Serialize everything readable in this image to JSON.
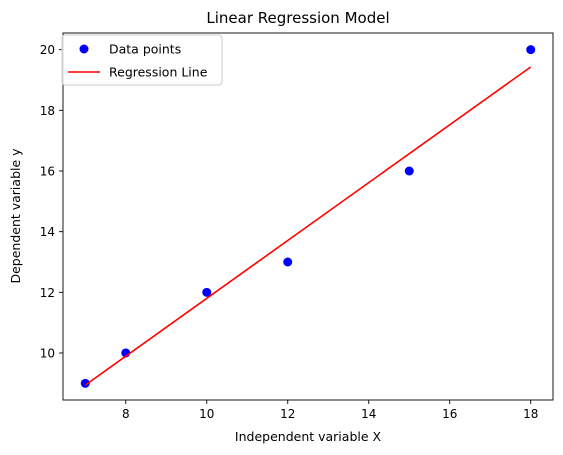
{
  "chart_data": {
    "type": "scatter",
    "title": "Linear Regression Model",
    "xlabel": "Independent variable X",
    "ylabel": "Dependent variable y",
    "xlim": [
      6.45,
      18.55
    ],
    "ylim": [
      8.45,
      20.55
    ],
    "xticks": [
      8,
      10,
      12,
      14,
      16,
      18
    ],
    "yticks": [
      10,
      12,
      14,
      16,
      18,
      20
    ],
    "grid": false,
    "legend_position": "top-left",
    "series": [
      {
        "name": "Data points",
        "kind": "scatter",
        "color": "#0000ff",
        "points": [
          [
            7,
            9
          ],
          [
            8,
            10
          ],
          [
            10,
            12
          ],
          [
            12,
            13
          ],
          [
            15,
            16
          ],
          [
            18,
            20
          ]
        ]
      },
      {
        "name": "Regression Line",
        "kind": "line",
        "color": "#ff0000",
        "points": [
          [
            7,
            8.94
          ],
          [
            18,
            19.43
          ]
        ]
      }
    ]
  }
}
